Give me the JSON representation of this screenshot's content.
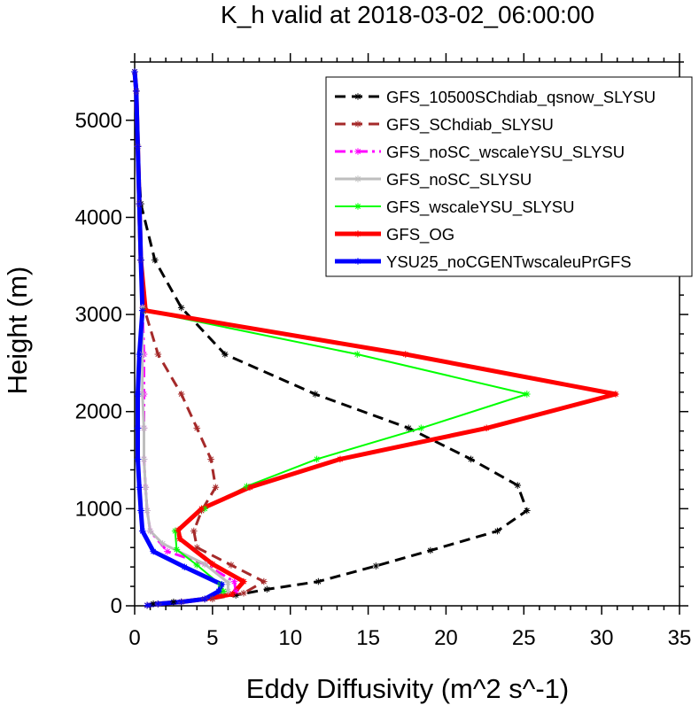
{
  "chart_data": {
    "type": "line",
    "title": "K_h valid at 2018-03-02_06:00:00",
    "xlabel": "Eddy Diffusivity (m^2 s^-1)",
    "ylabel": "Height (m)",
    "xlim": [
      0,
      35
    ],
    "ylim": [
      0,
      5600
    ],
    "xticks": [
      0,
      5,
      10,
      15,
      20,
      25,
      30,
      35
    ],
    "yticks": [
      0,
      1000,
      2000,
      3000,
      4000,
      5000
    ],
    "legend_position": "top-right",
    "series": [
      {
        "name": "GFS_10500SChdiab_qsnow_SLYSU",
        "color": "#000000",
        "dash": "dashed",
        "width": 3,
        "points": [
          [
            0.8,
            5
          ],
          [
            1.2,
            20
          ],
          [
            2.5,
            40
          ],
          [
            4.5,
            70
          ],
          [
            6.5,
            110
          ],
          [
            8.5,
            170
          ],
          [
            11.8,
            250
          ],
          [
            15.5,
            410
          ],
          [
            19,
            570
          ],
          [
            23.3,
            770
          ],
          [
            25.2,
            980
          ],
          [
            24.6,
            1240
          ],
          [
            21.6,
            1510
          ],
          [
            17.6,
            1830
          ],
          [
            11.6,
            2180
          ],
          [
            5.8,
            2590
          ],
          [
            3,
            3070
          ],
          [
            1.3,
            3560
          ],
          [
            0.4,
            4140
          ],
          [
            0.2,
            4730
          ],
          [
            0.1,
            5300
          ],
          [
            0,
            5500
          ]
        ]
      },
      {
        "name": "GFS_SChdiab_SLYSU",
        "color": "#a52a2a",
        "dash": "dashed",
        "width": 3,
        "points": [
          [
            0.8,
            5
          ],
          [
            1.5,
            20
          ],
          [
            3,
            40
          ],
          [
            5,
            70
          ],
          [
            7,
            130
          ],
          [
            8.3,
            250
          ],
          [
            6.2,
            420
          ],
          [
            4,
            600
          ],
          [
            3.8,
            770
          ],
          [
            4.3,
            980
          ],
          [
            5.2,
            1220
          ],
          [
            4.9,
            1510
          ],
          [
            4,
            1830
          ],
          [
            3,
            2180
          ],
          [
            1.5,
            2590
          ],
          [
            0.6,
            3070
          ],
          [
            0.4,
            3560
          ],
          [
            0.3,
            4140
          ],
          [
            0.2,
            4730
          ],
          [
            0.1,
            5300
          ],
          [
            0,
            5500
          ]
        ]
      },
      {
        "name": "GFS_noSC_wscaleYSU_SLYSU",
        "color": "#ff00ff",
        "dash": "dashdot",
        "width": 3,
        "points": [
          [
            0.8,
            5
          ],
          [
            1.5,
            20
          ],
          [
            3,
            40
          ],
          [
            4.5,
            70
          ],
          [
            6.5,
            150
          ],
          [
            6.4,
            250
          ],
          [
            4.5,
            430
          ],
          [
            2.1,
            560
          ],
          [
            1,
            770
          ],
          [
            0.8,
            980
          ],
          [
            0.7,
            1220
          ],
          [
            0.6,
            1510
          ],
          [
            0.6,
            1830
          ],
          [
            0.6,
            2180
          ],
          [
            0.6,
            2590
          ],
          [
            0.5,
            3070
          ],
          [
            0.4,
            3560
          ],
          [
            0.3,
            4140
          ],
          [
            0.2,
            4730
          ],
          [
            0.1,
            5300
          ],
          [
            0,
            5500
          ]
        ]
      },
      {
        "name": "GFS_noSC_SLYSU",
        "color": "#bebebe",
        "dash": "solid",
        "width": 3,
        "points": [
          [
            0.8,
            5
          ],
          [
            1.5,
            20
          ],
          [
            3,
            40
          ],
          [
            4.5,
            70
          ],
          [
            6,
            150
          ],
          [
            6,
            240
          ],
          [
            4.5,
            430
          ],
          [
            1.8,
            640
          ],
          [
            1,
            770
          ],
          [
            0.8,
            980
          ],
          [
            0.7,
            1220
          ],
          [
            0.6,
            1510
          ],
          [
            0.6,
            1830
          ],
          [
            0.5,
            2180
          ],
          [
            0.5,
            2590
          ],
          [
            0.5,
            3070
          ],
          [
            0.4,
            3560
          ],
          [
            0.3,
            4140
          ],
          [
            0.2,
            4730
          ],
          [
            0.1,
            5300
          ],
          [
            0,
            5500
          ]
        ]
      },
      {
        "name": "GFS_wscaleYSU_SLYSU",
        "color": "#00ff00",
        "dash": "solid",
        "width": 2,
        "points": [
          [
            0.8,
            5
          ],
          [
            1.5,
            20
          ],
          [
            3,
            40
          ],
          [
            4.5,
            70
          ],
          [
            5.7,
            150
          ],
          [
            5.5,
            220
          ],
          [
            4,
            420
          ],
          [
            2.7,
            580
          ],
          [
            2.6,
            770
          ],
          [
            4.5,
            1000
          ],
          [
            7.2,
            1230
          ],
          [
            11.7,
            1510
          ],
          [
            18.4,
            1830
          ],
          [
            25.2,
            2180
          ],
          [
            14.3,
            2590
          ],
          [
            0.6,
            3040
          ],
          [
            0.4,
            3560
          ],
          [
            0.3,
            4140
          ],
          [
            0.2,
            4730
          ],
          [
            0.1,
            5300
          ],
          [
            0,
            5500
          ]
        ]
      },
      {
        "name": "GFS_OG",
        "color": "#ff0000",
        "dash": "solid",
        "width": 5,
        "points": [
          [
            0.8,
            5
          ],
          [
            1.5,
            20
          ],
          [
            3,
            40
          ],
          [
            4.5,
            70
          ],
          [
            6.3,
            120
          ],
          [
            7,
            250
          ],
          [
            5,
            430
          ],
          [
            2.9,
            690
          ],
          [
            2.8,
            780
          ],
          [
            4.3,
            1000
          ],
          [
            7.4,
            1220
          ],
          [
            13.2,
            1510
          ],
          [
            22.6,
            1830
          ],
          [
            30.9,
            2180
          ],
          [
            17.4,
            2590
          ],
          [
            0.7,
            3040
          ],
          [
            0.4,
            3560
          ],
          [
            0.3,
            4140
          ],
          [
            0.2,
            4730
          ],
          [
            0.1,
            5300
          ],
          [
            0,
            5500
          ]
        ]
      },
      {
        "name": "YSU25_noCGENTwscaleuPrGFS",
        "color": "#0000ff",
        "dash": "solid",
        "width": 5,
        "points": [
          [
            0.8,
            5
          ],
          [
            1.5,
            20
          ],
          [
            3,
            40
          ],
          [
            4.5,
            70
          ],
          [
            5.4,
            150
          ],
          [
            5.6,
            220
          ],
          [
            3.2,
            400
          ],
          [
            1.2,
            560
          ],
          [
            0.5,
            770
          ],
          [
            0.4,
            980
          ],
          [
            0.3,
            1220
          ],
          [
            0.2,
            1510
          ],
          [
            0.2,
            1830
          ],
          [
            0.2,
            2180
          ],
          [
            0.3,
            2590
          ],
          [
            0.5,
            3040
          ],
          [
            0.4,
            3560
          ],
          [
            0.3,
            4140
          ],
          [
            0.2,
            4730
          ],
          [
            0.1,
            5300
          ],
          [
            0,
            5500
          ]
        ]
      }
    ]
  }
}
